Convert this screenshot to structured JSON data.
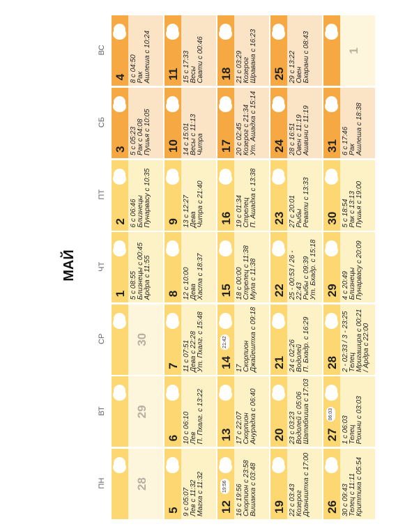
{
  "title": "МАЙ",
  "weekdays": [
    "ПН",
    "ВТ",
    "СР",
    "ЧТ",
    "ПТ",
    "СБ",
    "ВС"
  ],
  "weeks": [
    [
      {
        "day": "28",
        "muted": true,
        "lines": []
      },
      {
        "day": "29",
        "muted": true,
        "lines": []
      },
      {
        "day": "30",
        "muted": true,
        "lines": []
      },
      {
        "day": "1",
        "lines": [
          "5 с 08:55",
          "Близнецы с 00:45",
          "Ардра с 11:55"
        ]
      },
      {
        "day": "2",
        "lines": [
          "6 с 06:46",
          "Близнецы",
          "Пунарвасу с 10:35"
        ]
      },
      {
        "day": "3",
        "lines": [
          "5 с 05:23",
          "Рак с 04:08",
          "Пушья с 10:05"
        ]
      },
      {
        "day": "4",
        "lines": [
          "8 с 04:50",
          "Рак",
          "Ашлеша с 10:24"
        ]
      }
    ],
    [
      {
        "day": "5",
        "lines": [
          "9 с 05:07",
          "Лев с 11:32",
          "Магха с 11:32"
        ]
      },
      {
        "day": "6",
        "lines": [
          "10 с 06:10",
          "Лев",
          "П. Пхалг. с 13:22"
        ]
      },
      {
        "day": "7",
        "lines": [
          "11 с 07:51",
          "Дева с 22:28",
          "Ут. Пхалг. с 15:48"
        ]
      },
      {
        "day": "8",
        "lines": [
          "12 с 10:00",
          "Дева",
          "Хаста с 18:37"
        ]
      },
      {
        "day": "9",
        "lines": [
          "13 с 12:27",
          "Дева",
          "Читра с 21:40"
        ]
      },
      {
        "day": "10",
        "lines": [
          "14 с 15:01",
          "Весы с 11:13",
          "Читра"
        ]
      },
      {
        "day": "11",
        "lines": [
          "15 с 17:33",
          "Весы",
          "Свати с 00:46"
        ]
      }
    ],
    [
      {
        "day": "12",
        "badge": "19:56",
        "lines": [
          "16 с 19:56",
          "Скорпион с 23:58",
          "Вишакха с 03:48"
        ]
      },
      {
        "day": "13",
        "lines": [
          "17 с 22:07",
          "Скорпион",
          "Анурадха с 06:40"
        ]
      },
      {
        "day": "14",
        "badge": "21:42",
        "lines": [
          "17",
          "Скорпион",
          "Джайештха с 09:18"
        ]
      },
      {
        "day": "15",
        "lines": [
          "18 с 00:00",
          "Стрелец с 11:38",
          "Мула с 11:38"
        ]
      },
      {
        "day": "16",
        "lines": [
          "19 с 01:34",
          "Стрелец",
          "П. Ашадха с 13:38"
        ]
      },
      {
        "day": "17",
        "lines": [
          "20 с 02:45",
          "Козерог с 21:34",
          "Ут. Ашадха с 15:14"
        ]
      },
      {
        "day": "18",
        "lines": [
          "21 с 03:29",
          "Козерог",
          "Шравана с 16:23"
        ]
      }
    ],
    [
      {
        "day": "19",
        "lines": [
          "22 с 03:43",
          "Козерог",
          "Дхаништха с 17:00"
        ]
      },
      {
        "day": "20",
        "lines": [
          "23 с 03:23",
          "Водолей с 05:06",
          "Шатабхиша с 17:03"
        ]
      },
      {
        "day": "21",
        "lines": [
          "24 с 02:26",
          "Водолей",
          "П. Бхадр. с 16:29"
        ]
      },
      {
        "day": "22",
        "lines": [
          "25 - 00:53 / 26 -",
          "22:43",
          "Рыбы с 09:39",
          "Ут. Бхадр. с 15:18"
        ]
      },
      {
        "day": "23",
        "lines": [
          "27 с 20:01",
          "Рыбы",
          "Ревати с 13:33"
        ]
      },
      {
        "day": "24",
        "lines": [
          "28 с 16:51",
          "Овен с 11:19",
          "Ашвини с 11:19"
        ]
      },
      {
        "day": "25",
        "lines": [
          "29 с 13:22",
          "Овен",
          "Бхарани с 08:43"
        ]
      }
    ],
    [
      {
        "day": "26",
        "lines": [
          "30 с 09:43",
          "Телец с 11:11",
          "Криттика с 05:54"
        ]
      },
      {
        "day": "27",
        "badge": "06:03",
        "lines": [
          "1 с 06:03",
          "Телец",
          "Рохини с 03:03"
        ]
      },
      {
        "day": "28",
        "lines": [
          "2 - 02:33 / 3 - 23:25",
          "Телец",
          "Мригашира с 00:21",
          "/ Ардра с 22:00"
        ]
      },
      {
        "day": "29",
        "lines": [
          "4 с 20:49",
          "Близнецы",
          "Пунарвасу с 20:09"
        ]
      },
      {
        "day": "30",
        "lines": [
          "5 с 18:54",
          "Рак с 13:13",
          "Пушья с 19:00"
        ]
      },
      {
        "day": "31",
        "lines": [
          "6 с 17:46",
          "Рак",
          "Ашлеша с 18:38"
        ]
      },
      {
        "day": "1",
        "muted": true,
        "lines": []
      }
    ]
  ]
}
